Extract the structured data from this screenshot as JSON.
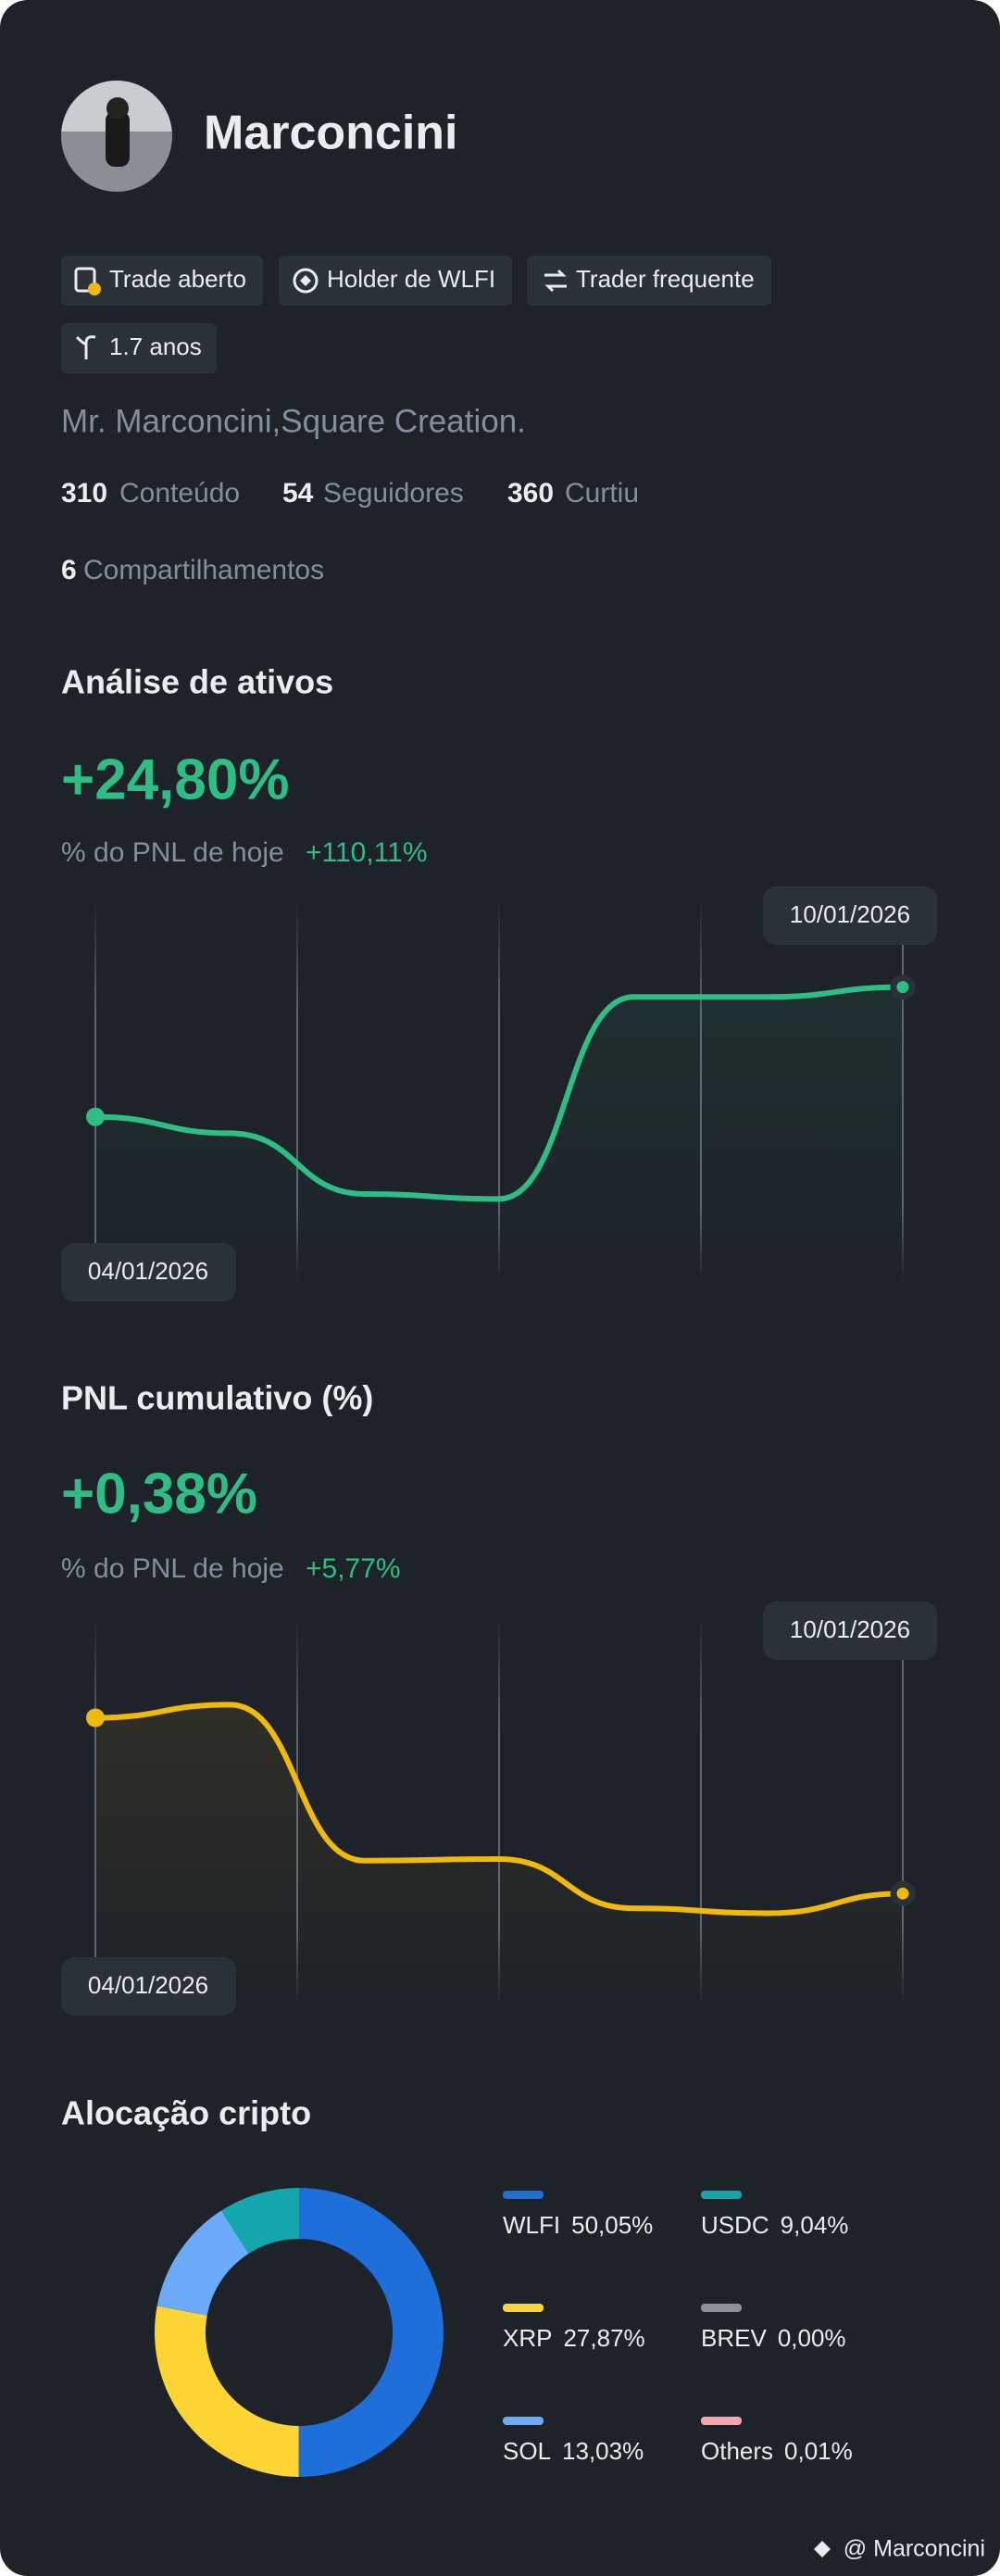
{
  "profile": {
    "name": "Marconcini",
    "tags": [
      "Trade aberto",
      "Holder de WLFI",
      "Trader frequente",
      "1.7 anos"
    ],
    "bio": "Mr. Marconcini,Square Creation.",
    "stats": [
      {
        "value": 310,
        "label": "Conteúdo"
      },
      {
        "value": 54,
        "label": "Seguidores"
      },
      {
        "value": 360,
        "label": "Curtiu"
      },
      {
        "value": 6,
        "label": "Compartilhamentos"
      }
    ]
  },
  "chart_data": [
    {
      "type": "line",
      "title": "Análise de ativos",
      "headline": "+24,80%",
      "subtitle": "% do PNL de hoje",
      "subtitle_value": "+110,11%",
      "categories": [
        "04/01/2026",
        null,
        null,
        null,
        null,
        null,
        "10/01/2026"
      ],
      "values": [
        100,
        90,
        53,
        50,
        173,
        173,
        179
      ],
      "color": "#2ebd85"
    },
    {
      "type": "line",
      "title": "PNL cumulativo (%)",
      "headline": "+0,38%",
      "subtitle": "% do PNL de hoje",
      "subtitle_value": "+5,77%",
      "categories": [
        "04/01/2026",
        null,
        null,
        null,
        null,
        null,
        "10/01/2026"
      ],
      "values": [
        174,
        182,
        87,
        88,
        58,
        55,
        67
      ],
      "color": "#f0b90b"
    },
    {
      "type": "donut",
      "title": "Alocação cripto",
      "series": [
        {
          "name": "WLFI",
          "color": "#1e6fd9"
        },
        {
          "name": "XRP",
          "color": "#fcd535"
        },
        {
          "name": "SOL",
          "color": "#6aaaf8"
        },
        {
          "name": "USDC",
          "color": "#14a6ad"
        },
        {
          "name": "BREV",
          "color": "#8c9199"
        },
        {
          "name": "Others",
          "color": "#f6a5b0"
        }
      ],
      "values": [
        50.05,
        27.87,
        13.03,
        9.04,
        0.0,
        0.01
      ],
      "value_labels": [
        "50,05%",
        "27,87%",
        "13,03%",
        "9,04%",
        "0,00%",
        "0,01%"
      ]
    }
  ],
  "watermark": "@ Marconcini"
}
